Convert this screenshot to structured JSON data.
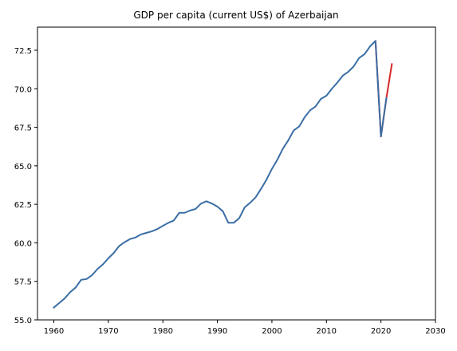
{
  "chart_data": {
    "type": "line",
    "title": "GDP per capita (current US$) of Azerbaijan",
    "xlabel": "",
    "ylabel": "",
    "xlim": [
      1957,
      2030
    ],
    "ylim": [
      55.0,
      74.0
    ],
    "x_ticks": [
      1960,
      1970,
      1980,
      1990,
      2000,
      2010,
      2020,
      2030
    ],
    "x_tick_labels": [
      "1960",
      "1970",
      "1980",
      "1990",
      "2000",
      "2010",
      "2020",
      "2030"
    ],
    "y_ticks": [
      55.0,
      57.5,
      60.0,
      62.5,
      65.0,
      67.5,
      70.0,
      72.5
    ],
    "y_tick_labels": [
      "55.0",
      "57.5",
      "60.0",
      "62.5",
      "65.0",
      "67.5",
      "70.0",
      "72.5"
    ],
    "grid": false,
    "series": [
      {
        "color": "#d62728",
        "x": [
          2019,
          2020,
          2021,
          2022
        ],
        "y": [
          73.1,
          66.9,
          69.4,
          71.6
        ]
      },
      {
        "color": "#3a6ea5",
        "x": [
          1960,
          1961,
          1962,
          1963,
          1964,
          1965,
          1966,
          1967,
          1968,
          1969,
          1970,
          1971,
          1972,
          1973,
          1974,
          1975,
          1976,
          1977,
          1978,
          1979,
          1980,
          1981,
          1982,
          1983,
          1984,
          1985,
          1986,
          1987,
          1988,
          1989,
          1990,
          1991,
          1992,
          1993,
          1994,
          1995,
          1996,
          1997,
          1998,
          1999,
          2000,
          2001,
          2002,
          2003,
          2004,
          2005,
          2006,
          2007,
          2008,
          2009,
          2010,
          2011,
          2012,
          2013,
          2014,
          2015,
          2016,
          2017,
          2018,
          2019,
          2020,
          2021
        ],
        "y": [
          55.8,
          56.1,
          56.4,
          56.8,
          57.1,
          57.6,
          57.65,
          57.9,
          58.3,
          58.6,
          59.0,
          59.35,
          59.8,
          60.05,
          60.25,
          60.35,
          60.55,
          60.65,
          60.75,
          60.9,
          61.1,
          61.3,
          61.45,
          61.95,
          61.95,
          62.1,
          62.2,
          62.55,
          62.7,
          62.55,
          62.35,
          62.05,
          61.3,
          61.3,
          61.6,
          62.3,
          62.6,
          62.95,
          63.5,
          64.1,
          64.8,
          65.4,
          66.1,
          66.65,
          67.3,
          67.55,
          68.15,
          68.6,
          68.85,
          69.35,
          69.55,
          70.0,
          70.4,
          70.85,
          71.1,
          71.45,
          72.0,
          72.25,
          72.75,
          73.1,
          66.9,
          69.4
        ]
      }
    ]
  }
}
